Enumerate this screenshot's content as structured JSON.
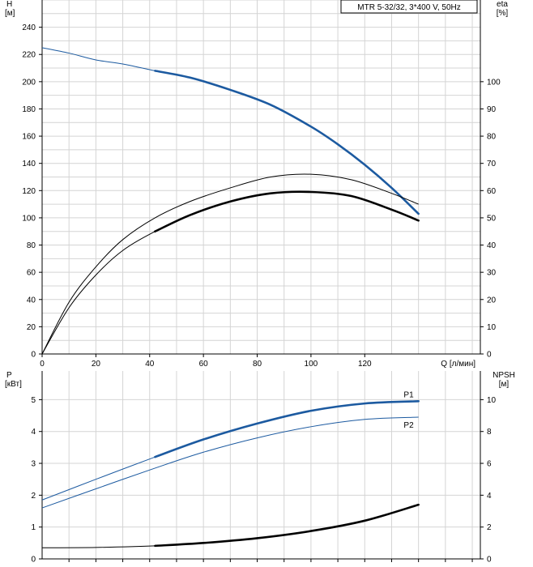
{
  "chart_data": [
    {
      "type": "line",
      "legend_box": "MTR 5-32/32, 3*400 V, 50Hz",
      "xlabel": "Q [л/мин]",
      "x_ticks": [
        0,
        20,
        40,
        60,
        80,
        100,
        120
      ],
      "xlim": [
        0,
        163
      ],
      "ylabel_left": [
        "H",
        "[м]"
      ],
      "ylabel_right": [
        "eta",
        "[%]"
      ],
      "y_left_ticks": [
        0,
        20,
        40,
        60,
        80,
        100,
        120,
        140,
        160,
        180,
        200,
        220,
        240
      ],
      "y_left_lim": [
        0,
        260
      ],
      "y_right_ticks": [
        0,
        10,
        20,
        30,
        40,
        50,
        60,
        70,
        80,
        90,
        100
      ],
      "y_right_lim": [
        0,
        130
      ],
      "grid": true,
      "colors": {
        "head": "#1c5aa0",
        "efficiency": "#000000",
        "grid": "#d4d4d4"
      },
      "series": [
        {
          "role": "head",
          "axis": "left",
          "color": "#1c5aa0",
          "x": [
            0,
            10,
            20,
            30,
            42,
            55,
            70,
            85,
            100,
            110,
            120,
            130,
            140
          ],
          "y": [
            225,
            221,
            216,
            213,
            208,
            203,
            194,
            183,
            167,
            154,
            139,
            122,
            103
          ],
          "op_start_x": 42
        },
        {
          "role": "eta",
          "axis": "right",
          "color": "#000000",
          "x": [
            0,
            10,
            20,
            30,
            42,
            55,
            70,
            85,
            100,
            115,
            130,
            140
          ],
          "y": [
            0,
            19,
            32,
            42,
            50,
            56,
            61,
            65,
            66,
            64,
            59,
            55
          ],
          "op_start_x": 999
        },
        {
          "role": "eta",
          "axis": "right",
          "color": "#000000",
          "x": [
            0,
            10,
            20,
            30,
            42,
            55,
            70,
            85,
            100,
            115,
            130,
            140
          ],
          "y": [
            0,
            17,
            29,
            38,
            45,
            51,
            56,
            59,
            59.5,
            58,
            53,
            49
          ],
          "op_start_x": 42
        }
      ]
    },
    {
      "type": "line",
      "ylabel_left": [
        "P",
        "[кВт]"
      ],
      "ylabel_right": [
        "NPSH",
        "[м]"
      ],
      "xlim": [
        0,
        163
      ],
      "y_left_ticks": [
        0,
        1,
        2,
        3,
        4,
        5
      ],
      "y_left_lim": [
        0,
        5.9
      ],
      "y_right_ticks": [
        0,
        2,
        4,
        6,
        8,
        10
      ],
      "y_right_lim": [
        0,
        11.8
      ],
      "grid": true,
      "colors": {
        "power": "#1c5aa0",
        "npsh": "#000000"
      },
      "series": [
        {
          "name": "P1",
          "axis": "left",
          "color": "#1c5aa0",
          "x": [
            0,
            20,
            42,
            60,
            80,
            100,
            120,
            140
          ],
          "y": [
            1.85,
            2.5,
            3.2,
            3.75,
            4.25,
            4.65,
            4.88,
            4.95
          ],
          "op_start_x": 42
        },
        {
          "name": "P2",
          "axis": "left",
          "color": "#1c5aa0",
          "x": [
            0,
            20,
            42,
            60,
            80,
            100,
            120,
            140
          ],
          "y": [
            1.6,
            2.2,
            2.85,
            3.35,
            3.8,
            4.15,
            4.38,
            4.45
          ],
          "op_start_x": 999
        },
        {
          "role": "npsh",
          "axis": "right",
          "color": "#000000",
          "x": [
            0,
            20,
            42,
            60,
            80,
            100,
            120,
            140
          ],
          "y": [
            0.7,
            0.72,
            0.82,
            1.0,
            1.3,
            1.75,
            2.4,
            3.4
          ],
          "op_start_x": 42
        }
      ]
    }
  ]
}
